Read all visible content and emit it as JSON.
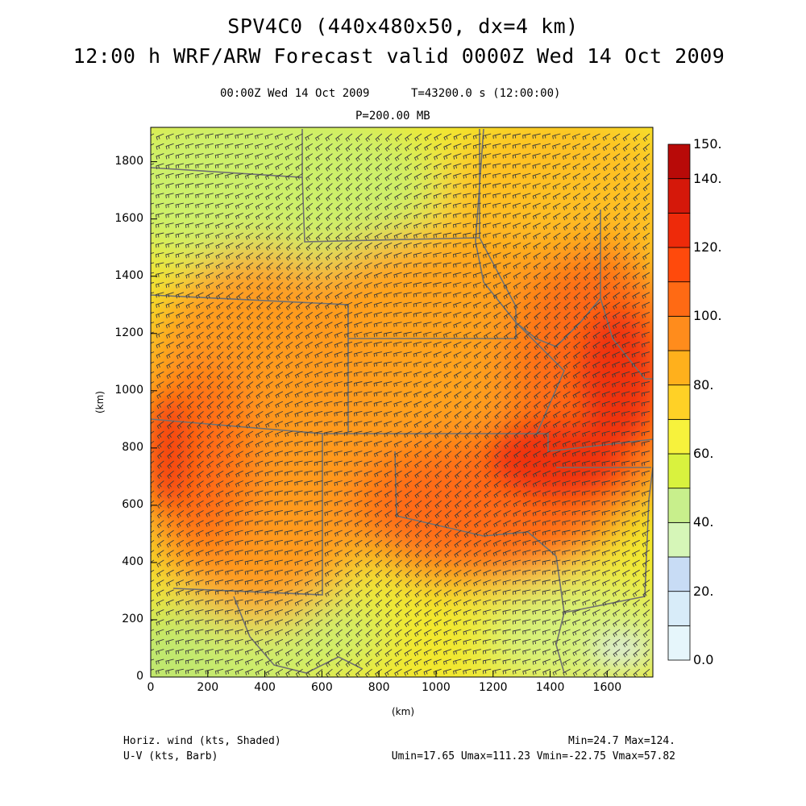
{
  "title": {
    "line1": "SPV4C0 (440x480x50, dx=4 km)",
    "line2": "12:00 h WRF/ARW Forecast valid 0000Z Wed 14 Oct 2009"
  },
  "subtitle": {
    "valid_time": "00:00Z Wed 14 Oct 2009",
    "model_time": "T=43200.0 s (12:00:00)",
    "level": "P=200.00 MB"
  },
  "axes": {
    "x_label": "(km)",
    "y_label": "(km)",
    "x_ticks": [
      0,
      200,
      400,
      600,
      800,
      1000,
      1200,
      1400,
      1600
    ],
    "y_ticks": [
      0,
      200,
      400,
      600,
      800,
      1000,
      1200,
      1400,
      1600,
      1800
    ],
    "x_range": [
      0,
      1760
    ],
    "y_range": [
      0,
      1920
    ]
  },
  "colorbar": {
    "labels": [
      "0.0",
      "20.",
      "40.",
      "60.",
      "80.",
      "100.",
      "120.",
      "140.",
      "150."
    ],
    "levels": [
      0,
      10,
      20,
      30,
      40,
      50,
      60,
      70,
      80,
      90,
      100,
      110,
      120,
      130,
      140,
      150
    ],
    "colors": [
      "#e6f6fb",
      "#d8ecf9",
      "#c8dcf5",
      "#d6f6b8",
      "#c8ef8c",
      "#d9f23e",
      "#f7f23c",
      "#ffd126",
      "#ffb01c",
      "#ff8c1c",
      "#ff6a14",
      "#ff4a0c",
      "#ee2a0a",
      "#d5180a",
      "#b80a08"
    ]
  },
  "footer": {
    "field1": "Horiz. wind (kts, Shaded)",
    "field2": "U-V (kts, Barb)",
    "minmax": "Min=24.7 Max=124.",
    "uv_stats": "Umin=17.65 Umax=111.23 Vmin=-22.75 Vmax=57.82"
  },
  "field_stats": {
    "min": 24.7,
    "max": 124,
    "umin": 17.65,
    "umax": 111.23,
    "vmin": -22.75,
    "vmax": 57.82
  },
  "colors": {
    "border": "#707070",
    "barb": "#3a3a3a",
    "frame": "#000000"
  }
}
